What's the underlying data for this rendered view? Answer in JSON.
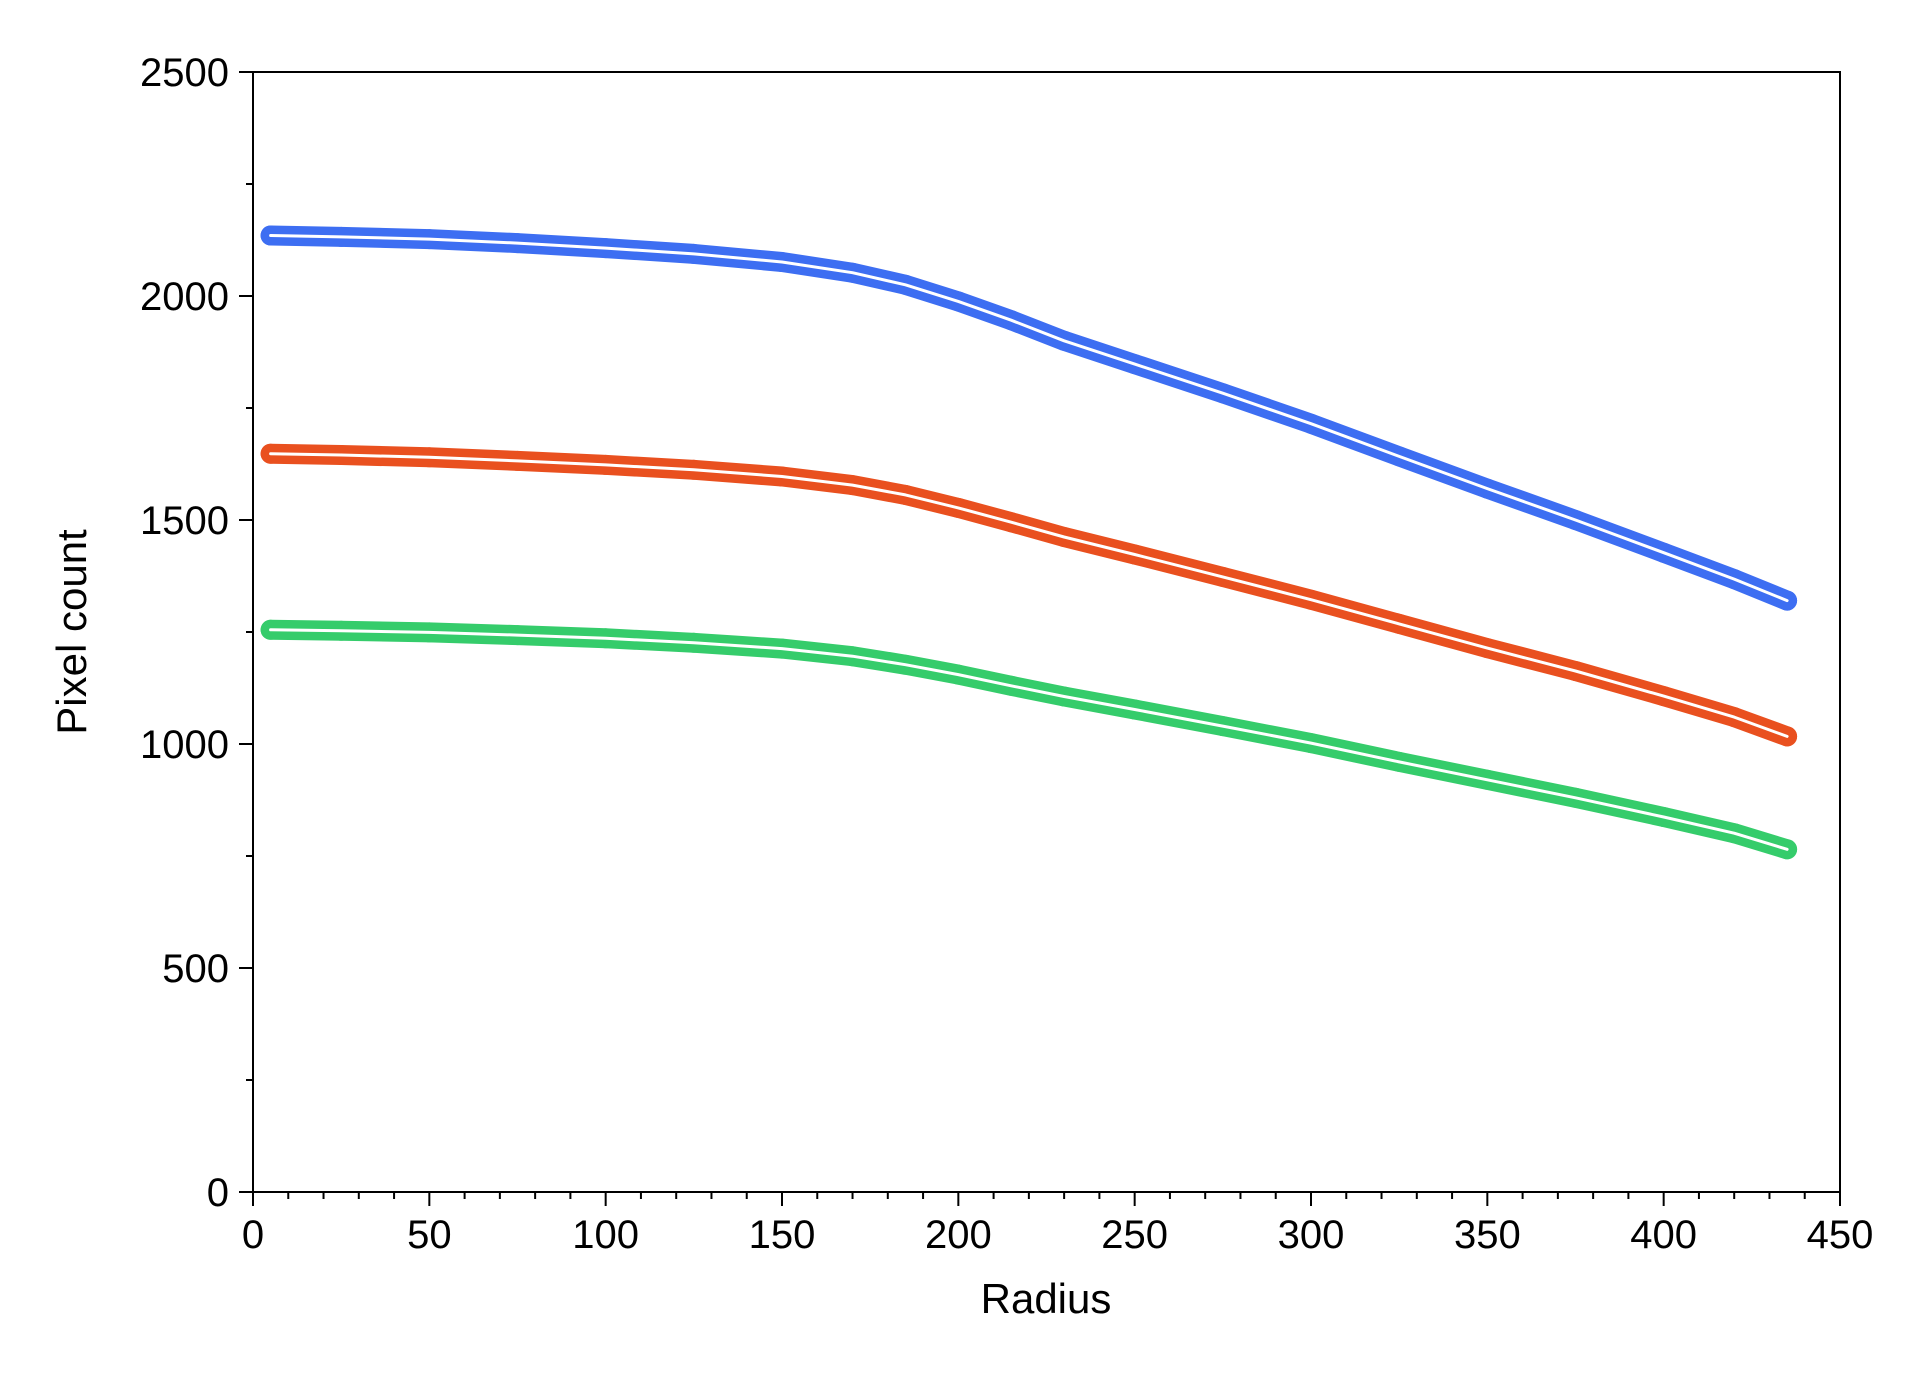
{
  "chart_data": {
    "type": "scatter",
    "title": "",
    "xlabel": "Radius",
    "ylabel": "Pixel count",
    "xlim": [
      0,
      450
    ],
    "ylim": [
      0,
      2500
    ],
    "x_ticks": [
      0,
      50,
      100,
      150,
      200,
      250,
      300,
      350,
      400,
      450
    ],
    "y_ticks": [
      0,
      500,
      1000,
      1500,
      2000,
      2500
    ],
    "x_ticks_labels": [
      "0",
      "50",
      "100",
      "150",
      "200",
      "250",
      "300",
      "350",
      "400",
      "450"
    ],
    "y_ticks_labels": [
      "0",
      "500",
      "1000",
      "1500",
      "2000",
      "2500"
    ],
    "x_minor_step": 10,
    "y_minor_step": 250,
    "grid": false,
    "legend": "none",
    "fit_line_color": "#ffffff",
    "series": [
      {
        "color": "#3d6ef2",
        "x": [
          5,
          25,
          50,
          75,
          100,
          125,
          150,
          170,
          185,
          200,
          215,
          230,
          250,
          275,
          300,
          325,
          350,
          375,
          400,
          420,
          435
        ],
        "y": [
          2135,
          2132,
          2127,
          2118,
          2107,
          2094,
          2076,
          2052,
          2025,
          1988,
          1946,
          1900,
          1848,
          1783,
          1715,
          1642,
          1570,
          1500,
          1427,
          1368,
          1320
        ]
      },
      {
        "color": "#e9501f",
        "x": [
          5,
          25,
          50,
          75,
          100,
          125,
          150,
          170,
          185,
          200,
          215,
          230,
          250,
          275,
          300,
          325,
          350,
          375,
          400,
          420,
          435
        ],
        "y": [
          1648,
          1645,
          1640,
          1632,
          1623,
          1612,
          1597,
          1578,
          1556,
          1527,
          1495,
          1462,
          1423,
          1373,
          1322,
          1268,
          1214,
          1163,
          1107,
          1060,
          1017
        ]
      },
      {
        "color": "#35cc6b",
        "x": [
          5,
          25,
          50,
          75,
          100,
          125,
          150,
          170,
          185,
          200,
          215,
          230,
          250,
          275,
          300,
          325,
          350,
          375,
          400,
          420,
          435
        ],
        "y": [
          1255,
          1253,
          1249,
          1243,
          1236,
          1226,
          1213,
          1196,
          1177,
          1155,
          1130,
          1106,
          1077,
          1040,
          1002,
          960,
          920,
          880,
          837,
          801,
          765
        ]
      }
    ]
  }
}
